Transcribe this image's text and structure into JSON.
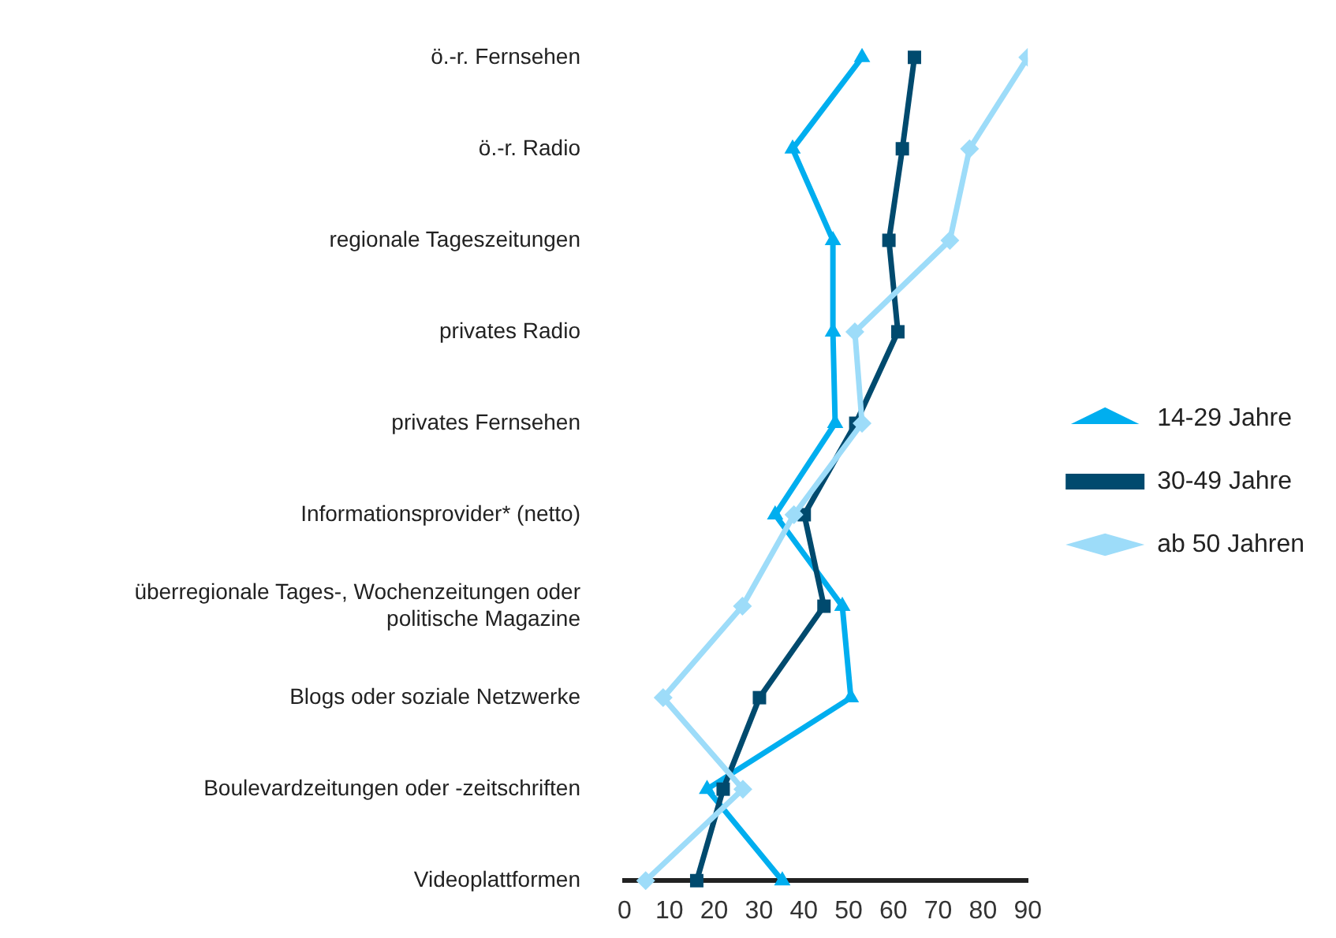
{
  "chart_data": {
    "type": "line",
    "orientation": "horizontal",
    "categories": [
      "ö.-r. Fernsehen",
      "ö.-r. Radio",
      "regionale Tageszeitungen",
      "privates Radio",
      "privates Fernsehen",
      "Informationsprovider* (netto)",
      "überregionale Tages-, Wochenzeitungen oder politische Magazine",
      "Blogs oder soziale Netzwerke",
      "Boulevardzeitungen oder -zeitschriften",
      "Videoplattformen"
    ],
    "series": [
      {
        "name": "14-29 Jahre",
        "color": "#00aeef",
        "marker": "triangle",
        "values": [
          53,
          37.5,
          46.5,
          46.5,
          47,
          33.6,
          48.6,
          50.5,
          18.4,
          35.2
        ]
      },
      {
        "name": "30-49 Jahre",
        "color": "#004a6e",
        "marker": "square",
        "values": [
          64.7,
          62,
          59,
          61,
          51.6,
          40.1,
          44.5,
          30.1,
          22,
          16.1
        ]
      },
      {
        "name": "ab 50 Jahren",
        "color": "#9ddcf9",
        "marker": "diamond",
        "values": [
          90,
          77,
          72.6,
          51.4,
          53,
          37.8,
          26.3,
          8.6,
          26.4,
          4.7
        ]
      }
    ],
    "xlim": [
      0,
      90
    ],
    "xticks": [
      0,
      10,
      20,
      30,
      40,
      50,
      60,
      70,
      80,
      90
    ],
    "grid": false,
    "legend": "right",
    "line_style": "solid"
  }
}
